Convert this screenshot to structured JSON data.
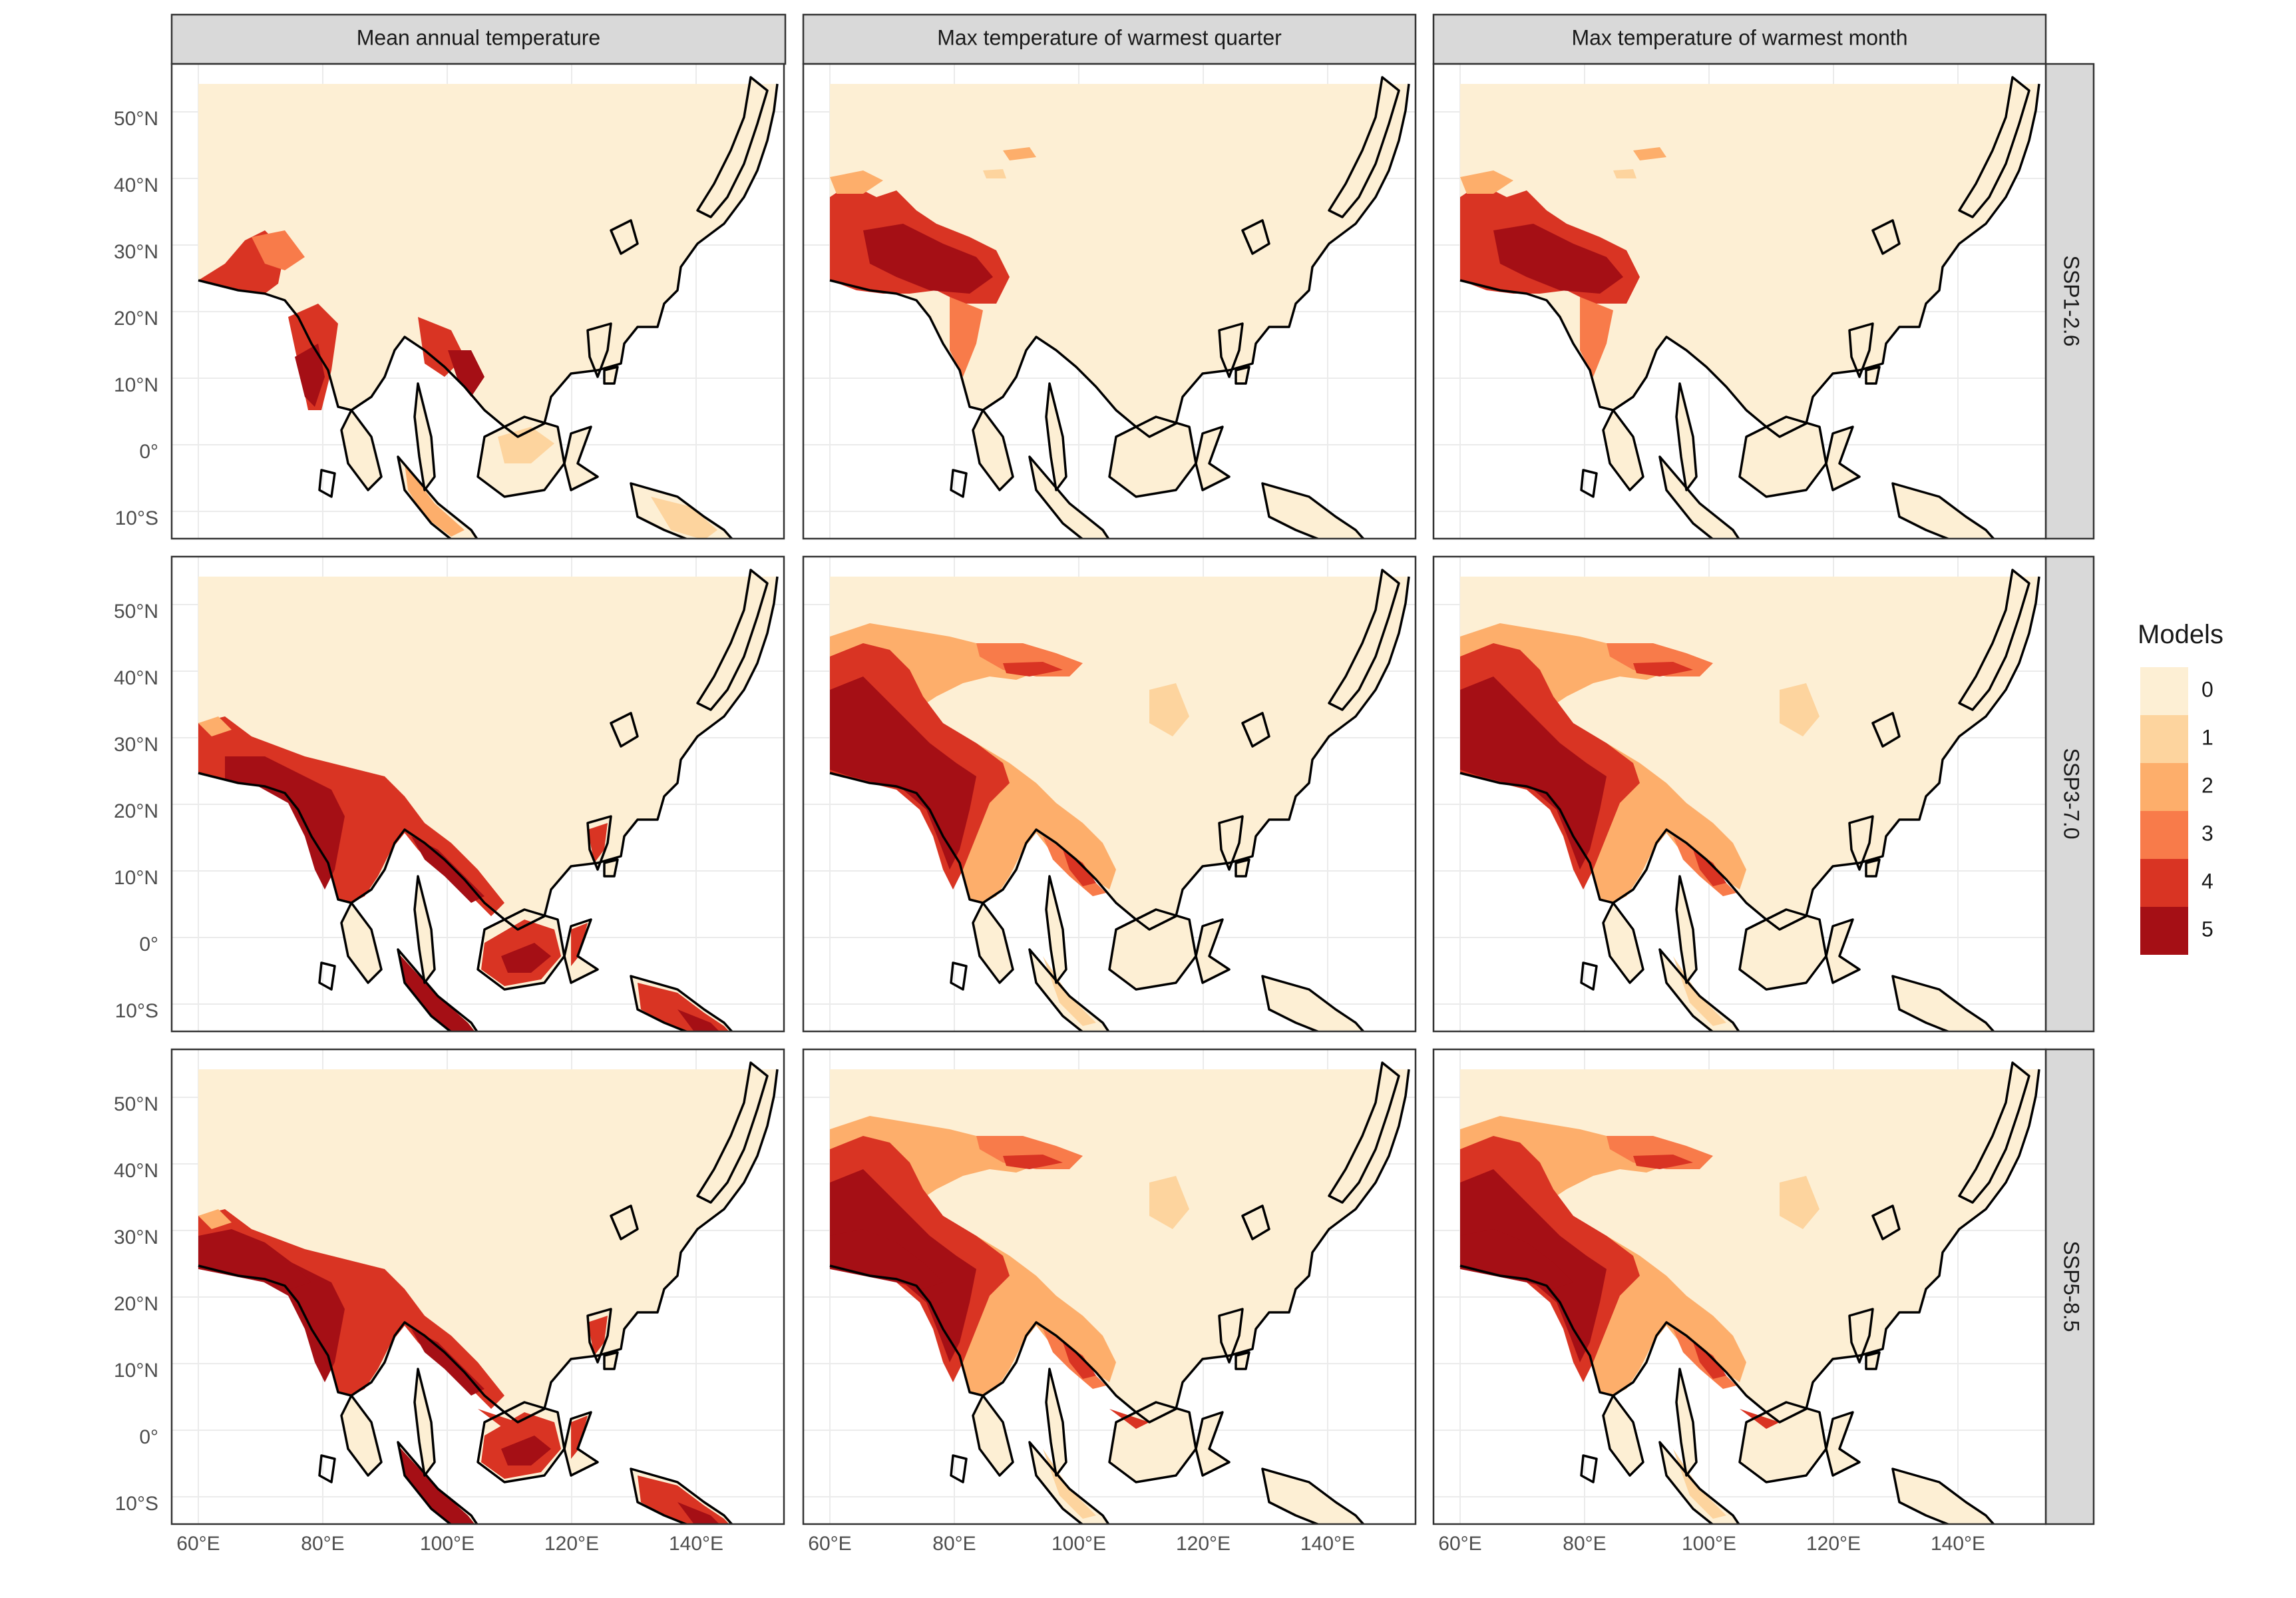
{
  "columns": [
    "Mean annual temperature",
    "Max temperature of warmest quarter",
    "Max temperature of warmest month"
  ],
  "rows": [
    "SSP1-2.6",
    "SSP3-7.0",
    "SSP5-8.5"
  ],
  "axes": {
    "lon_ticks": [
      "60°E",
      "80°E",
      "100°E",
      "120°E",
      "140°E"
    ],
    "lat_ticks": [
      "50°N",
      "40°N",
      "30°N",
      "20°N",
      "10°N",
      "0°",
      "10°S"
    ]
  },
  "legend": {
    "title": "Models",
    "levels": [
      {
        "label": "0",
        "color": "#FDEFD4"
      },
      {
        "label": "1",
        "color": "#FDD49E"
      },
      {
        "label": "2",
        "color": "#FDAE6B"
      },
      {
        "label": "3",
        "color": "#F87B4A"
      },
      {
        "label": "4",
        "color": "#D93423"
      },
      {
        "label": "5",
        "color": "#A50F15"
      }
    ]
  },
  "colors": {
    "strip_fill": "#D9D9D9",
    "panel_border": "#333333",
    "grid": "#EBEBEB",
    "coast": "#000000"
  }
}
